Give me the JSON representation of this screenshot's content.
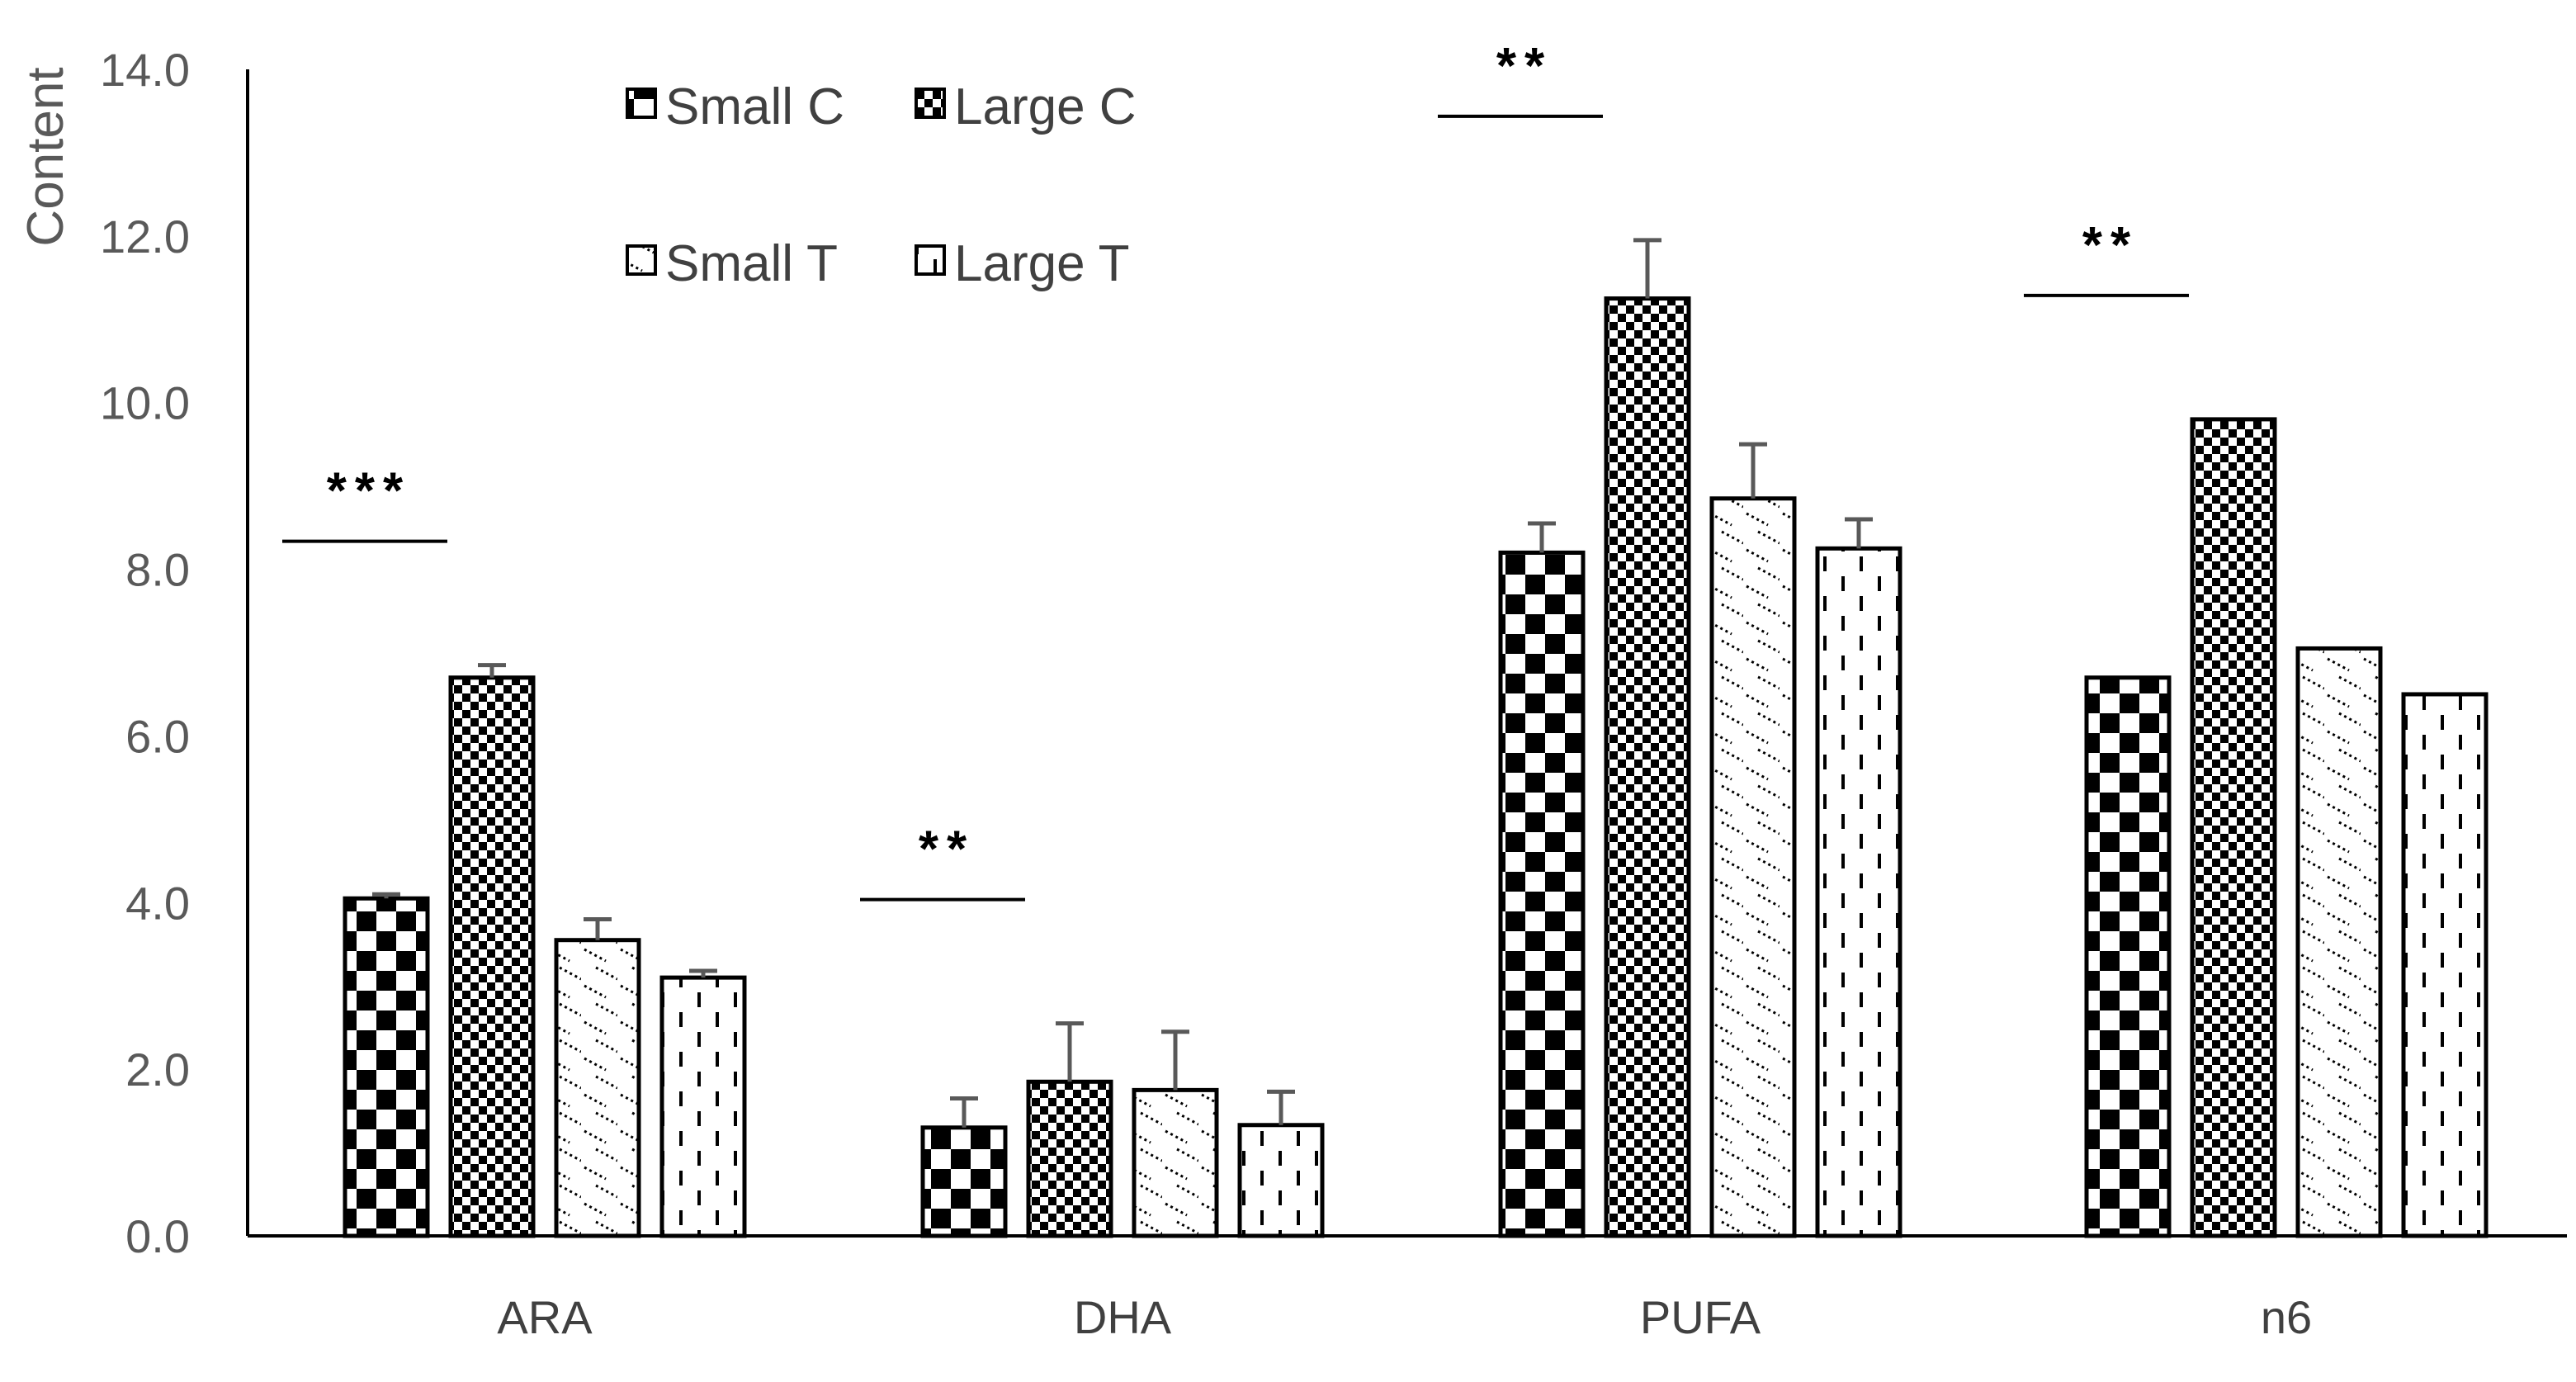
{
  "chart_data": {
    "type": "bar",
    "title": "",
    "xlabel": "",
    "ylabel": "Content",
    "ylim": [
      0,
      14
    ],
    "yticks": [
      "0.0",
      "2.0",
      "4.0",
      "6.0",
      "8.0",
      "10.0",
      "12.0",
      "14.0"
    ],
    "grid": false,
    "legend_position": "top-left",
    "categories": [
      "ARA",
      "DHA",
      "PUFA",
      "n6"
    ],
    "series": [
      {
        "name": "Small C",
        "pattern": "checker-large",
        "values": [
          4.05,
          1.3,
          8.2,
          6.7
        ],
        "errors": [
          0.05,
          0.35,
          0.35,
          0.0
        ]
      },
      {
        "name": "Large C",
        "pattern": "checker-small",
        "values": [
          6.7,
          1.85,
          11.25,
          9.8
        ],
        "errors": [
          0.15,
          0.7,
          0.7,
          0.0
        ]
      },
      {
        "name": "Small T",
        "pattern": "hatch-dots",
        "values": [
          3.55,
          1.75,
          8.85,
          7.05
        ],
        "errors": [
          0.25,
          0.7,
          0.65,
          0.0
        ]
      },
      {
        "name": "Large T",
        "pattern": "dashes",
        "values": [
          3.1,
          1.33,
          8.25,
          6.5
        ],
        "errors": [
          0.08,
          0.4,
          0.35,
          0.0
        ]
      }
    ],
    "annotations": [
      {
        "category": "ARA",
        "text": "***"
      },
      {
        "category": "DHA",
        "text": "**"
      },
      {
        "category": "PUFA",
        "text": "**"
      },
      {
        "category": "n6",
        "text": "**"
      }
    ]
  }
}
